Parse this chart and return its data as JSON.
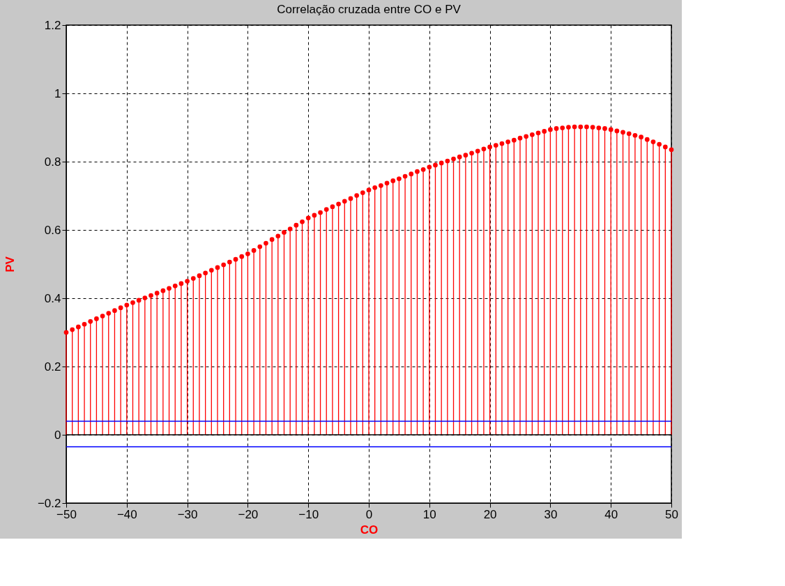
{
  "chart_data": {
    "type": "lollipop",
    "title": "Correlação cruzada entre CO e PV",
    "xlabel": "CO",
    "ylabel": "PV",
    "x": [
      -50,
      -49,
      -48,
      -47,
      -46,
      -45,
      -44,
      -43,
      -42,
      -41,
      -40,
      -39,
      -38,
      -37,
      -36,
      -35,
      -34,
      -33,
      -32,
      -31,
      -30,
      -29,
      -28,
      -27,
      -26,
      -25,
      -24,
      -23,
      -22,
      -21,
      -20,
      -19,
      -18,
      -17,
      -16,
      -15,
      -14,
      -13,
      -12,
      -11,
      -10,
      -9,
      -8,
      -7,
      -6,
      -5,
      -4,
      -3,
      -2,
      -1,
      0,
      1,
      2,
      3,
      4,
      5,
      6,
      7,
      8,
      9,
      10,
      11,
      12,
      13,
      14,
      15,
      16,
      17,
      18,
      19,
      20,
      21,
      22,
      23,
      24,
      25,
      26,
      27,
      28,
      29,
      30,
      31,
      32,
      33,
      34,
      35,
      36,
      37,
      38,
      39,
      40,
      41,
      42,
      43,
      44,
      45,
      46,
      47,
      48,
      49,
      50
    ],
    "values": [
      0.3,
      0.308,
      0.316,
      0.324,
      0.332,
      0.34,
      0.348,
      0.356,
      0.364,
      0.372,
      0.38,
      0.387,
      0.394,
      0.401,
      0.408,
      0.415,
      0.422,
      0.429,
      0.436,
      0.443,
      0.45,
      0.458,
      0.466,
      0.474,
      0.482,
      0.49,
      0.498,
      0.506,
      0.514,
      0.522,
      0.53,
      0.54,
      0.551,
      0.561,
      0.572,
      0.582,
      0.593,
      0.603,
      0.614,
      0.624,
      0.635,
      0.643,
      0.651,
      0.66,
      0.668,
      0.676,
      0.684,
      0.692,
      0.701,
      0.709,
      0.717,
      0.724,
      0.73,
      0.737,
      0.744,
      0.75,
      0.757,
      0.764,
      0.771,
      0.777,
      0.784,
      0.79,
      0.796,
      0.802,
      0.808,
      0.814,
      0.819,
      0.825,
      0.831,
      0.837,
      0.843,
      0.848,
      0.853,
      0.858,
      0.863,
      0.869,
      0.874,
      0.879,
      0.884,
      0.889,
      0.894,
      0.897,
      0.899,
      0.901,
      0.902,
      0.902,
      0.902,
      0.901,
      0.899,
      0.897,
      0.894,
      0.89,
      0.886,
      0.882,
      0.877,
      0.872,
      0.865,
      0.858,
      0.851,
      0.843,
      0.835
    ],
    "color": "#ff0000",
    "marker": "circle",
    "xlim": [
      -50,
      50
    ],
    "xticks": [
      -50,
      -40,
      -30,
      -20,
      -10,
      0,
      10,
      20,
      30,
      40,
      50
    ],
    "ylim": [
      -0.2,
      1.2
    ],
    "yticks": [
      -0.2,
      0,
      0.2,
      0.4,
      0.6,
      0.8,
      1,
      1.2
    ],
    "grid": true,
    "ref_lines": [
      {
        "axis": "y",
        "value": 0,
        "color": "#000000"
      },
      {
        "axis": "y",
        "value": 0.04,
        "color": "#0000ff"
      },
      {
        "axis": "y",
        "value": -0.035,
        "color": "#0000ff"
      }
    ]
  }
}
